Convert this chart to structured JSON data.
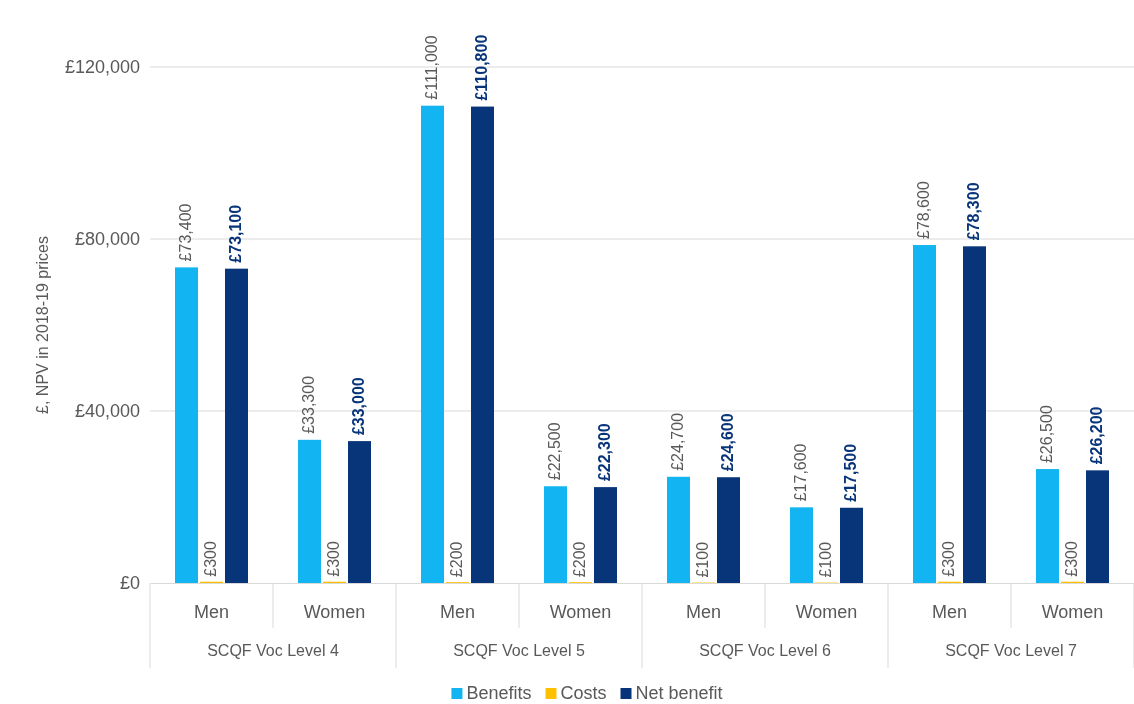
{
  "chart_data": {
    "type": "bar",
    "ylabel": "£, NPV in 2018-19 prices",
    "categories": [
      "Men",
      "Women",
      "Men",
      "Women",
      "Men",
      "Women",
      "Men",
      "Women"
    ],
    "annotations": [
      "SCQF Voc Level 4",
      "SCQF Voc Level 5",
      "SCQF Voc Level 6",
      "SCQF Voc Level 7"
    ],
    "series": [
      {
        "name": "Benefits",
        "color": "#12b5f1",
        "values": [
          73400,
          33300,
          111000,
          22500,
          24700,
          17600,
          78600,
          26500
        ],
        "value_labels": [
          "£73,400",
          "£33,300",
          "£111,000",
          "£22,500",
          "£24,700",
          "£17,600",
          "£78,600",
          "£26,500"
        ]
      },
      {
        "name": "Costs",
        "color": "#ffc000",
        "values": [
          300,
          300,
          200,
          200,
          100,
          100,
          300,
          300
        ],
        "value_labels": [
          "£300",
          "£300",
          "£200",
          "£200",
          "£100",
          "£100",
          "£300",
          "£300"
        ]
      },
      {
        "name": "Net benefit",
        "color": "#08357a",
        "values": [
          73100,
          33000,
          110800,
          22300,
          24600,
          17500,
          78300,
          26200
        ],
        "value_labels": [
          "£73,100",
          "£33,000",
          "£110,800",
          "£22,300",
          "£24,600",
          "£17,500",
          "£78,300",
          "£26,200"
        ]
      }
    ],
    "ylim": [
      0,
      120000
    ],
    "yticks": [
      {
        "value": 0,
        "label": "£0"
      },
      {
        "value": 40000,
        "label": "£40,000"
      },
      {
        "value": 80000,
        "label": "£80,000"
      },
      {
        "value": 120000,
        "label": "£120,000"
      }
    ],
    "grid": "y",
    "legend": "bottom"
  }
}
